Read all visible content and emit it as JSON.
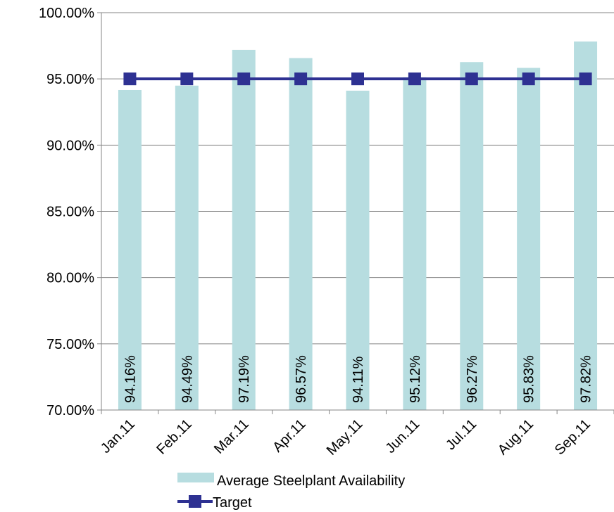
{
  "chart_data": {
    "type": "bar",
    "categories": [
      "Jan.11",
      "Feb.11",
      "Mar.11",
      "Apr.11",
      "May.11",
      "Jun.11",
      "Jul.11",
      "Aug.11",
      "Sep.11"
    ],
    "series": [
      {
        "name": "Average Steelplant Availability",
        "kind": "bar",
        "values": [
          94.16,
          94.49,
          97.19,
          96.57,
          94.11,
          95.12,
          96.27,
          95.83,
          97.82
        ],
        "labels": [
          "94.16%",
          "94.49%",
          "97.19%",
          "96.57%",
          "94.11%",
          "95.12%",
          "96.27%",
          "95.83%",
          "97.82%"
        ],
        "color": "#b7dde0"
      },
      {
        "name": "Target",
        "kind": "line",
        "values": [
          95,
          95,
          95,
          95,
          95,
          95,
          95,
          95,
          95
        ],
        "color": "#2e3192",
        "marker": "square"
      }
    ],
    "ylim": [
      70,
      100
    ],
    "yticks": [
      70,
      75,
      80,
      85,
      90,
      95,
      100
    ],
    "ytick_labels": [
      "70.00%",
      "75.00%",
      "80.00%",
      "85.00%",
      "90.00%",
      "95.00%",
      "100.00%"
    ],
    "grid": true,
    "legend_position": "bottom"
  }
}
